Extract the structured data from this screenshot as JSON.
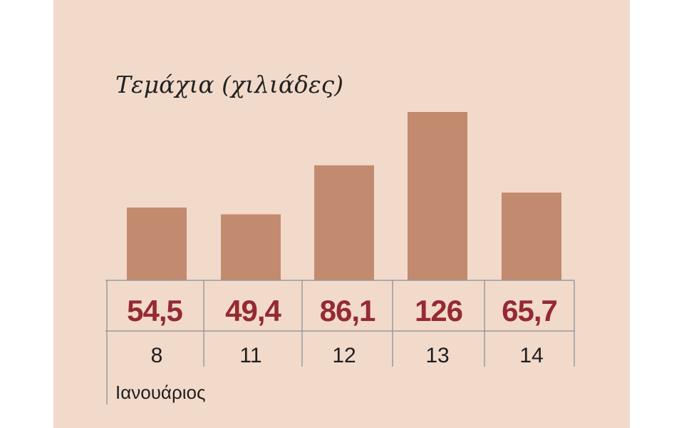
{
  "chart_data": {
    "type": "bar",
    "title": "Τεμάχια (χιλιάδες)",
    "categories": [
      "8",
      "11",
      "12",
      "13",
      "14"
    ],
    "values": [
      54.5,
      49.4,
      86.1,
      126,
      65.7
    ],
    "value_labels": [
      "54,5",
      "49,4",
      "86,1",
      "126",
      "65,7"
    ],
    "xlabel": "Ιανουάριος",
    "ylabel": "",
    "ylim": [
      0,
      126
    ],
    "grid": false,
    "colors": {
      "background": "#f2dacb",
      "bar": "#c28a6e",
      "value_text": "#952a31",
      "table_lines": "#9a9a9a"
    }
  }
}
